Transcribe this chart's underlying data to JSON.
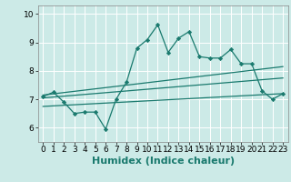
{
  "xlabel": "Humidex (Indice chaleur)",
  "background_color": "#cceae7",
  "grid_color": "#ffffff",
  "line_color": "#1a7a6e",
  "xlim": [
    -0.5,
    23.5
  ],
  "ylim": [
    5.5,
    10.3
  ],
  "xticks": [
    0,
    1,
    2,
    3,
    4,
    5,
    6,
    7,
    8,
    9,
    10,
    11,
    12,
    13,
    14,
    15,
    16,
    17,
    18,
    19,
    20,
    21,
    22,
    23
  ],
  "yticks": [
    6,
    7,
    8,
    9,
    10
  ],
  "main_line_x": [
    0,
    1,
    2,
    3,
    4,
    5,
    6,
    7,
    8,
    9,
    10,
    11,
    12,
    13,
    14,
    15,
    16,
    17,
    18,
    19,
    20,
    21,
    22,
    23
  ],
  "main_line_y": [
    7.1,
    7.25,
    6.9,
    6.5,
    6.55,
    6.55,
    5.95,
    7.0,
    7.6,
    8.8,
    9.1,
    9.62,
    8.65,
    9.15,
    9.38,
    8.5,
    8.45,
    8.45,
    8.75,
    8.25,
    8.25,
    7.3,
    7.0,
    7.2
  ],
  "trend1_x": [
    0,
    23
  ],
  "trend1_y": [
    7.15,
    8.15
  ],
  "trend2_x": [
    0,
    23
  ],
  "trend2_y": [
    7.05,
    7.75
  ],
  "trend3_x": [
    0,
    23
  ],
  "trend3_y": [
    6.75,
    7.2
  ],
  "marker": "D",
  "markersize": 2.2,
  "linewidth": 0.9,
  "xlabel_fontsize": 8,
  "tick_fontsize": 6.5
}
